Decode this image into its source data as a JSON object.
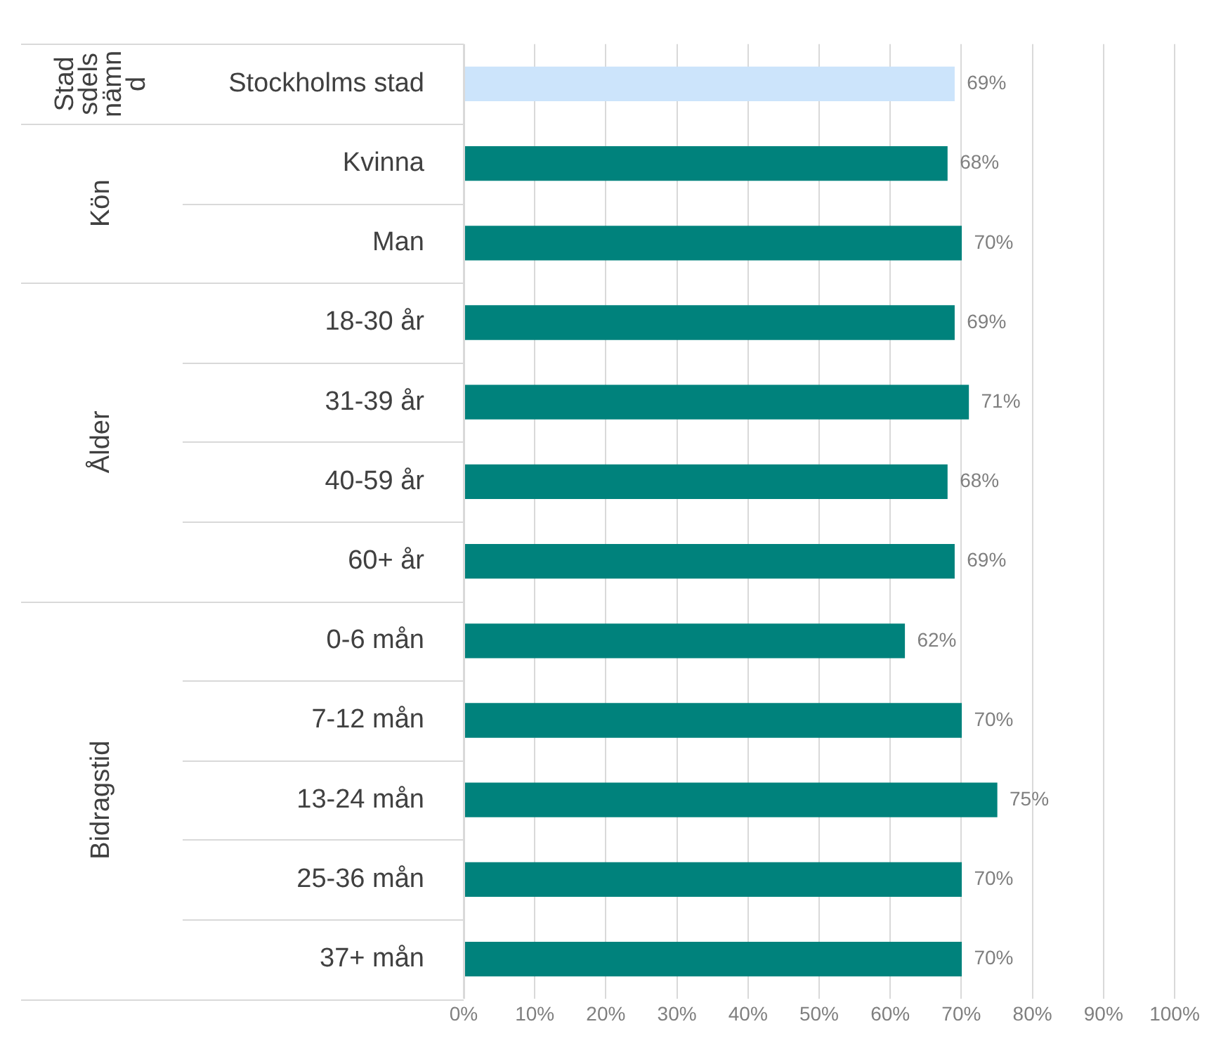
{
  "chart_data": {
    "type": "bar",
    "orientation": "horizontal",
    "categories": [
      "Stockholms stad",
      "Kvinna",
      "Man",
      "18-30 år",
      "31-39 år",
      "40-59 år",
      "60+ år",
      "0-6 mån",
      "7-12 mån",
      "13-24 mån",
      "25-36 mån",
      "37+ mån"
    ],
    "values": [
      69,
      68,
      70,
      69,
      71,
      68,
      69,
      62,
      70,
      75,
      70,
      70
    ],
    "colors": [
      "#cce4fb",
      "#00827c",
      "#00827c",
      "#00827c",
      "#00827c",
      "#00827c",
      "#00827c",
      "#00827c",
      "#00827c",
      "#00827c",
      "#00827c",
      "#00827c"
    ],
    "value_labels": [
      "69%",
      "68%",
      "70%",
      "69%",
      "71%",
      "68%",
      "69%",
      "62%",
      "70%",
      "75%",
      "70%",
      "70%"
    ],
    "xlim": [
      0,
      100
    ],
    "xticks": [
      {
        "value": 0,
        "label": "0%"
      },
      {
        "value": 10,
        "label": "10%"
      },
      {
        "value": 20,
        "label": "20%"
      },
      {
        "value": 30,
        "label": "30%"
      },
      {
        "value": 40,
        "label": "40%"
      },
      {
        "value": 50,
        "label": "50%"
      },
      {
        "value": 60,
        "label": "60%"
      },
      {
        "value": 70,
        "label": "70%"
      },
      {
        "value": 80,
        "label": "80%"
      },
      {
        "value": 90,
        "label": "90%"
      },
      {
        "value": 100,
        "label": "100%"
      }
    ],
    "annotations": [
      "Stad\nsdels\nnämn\nd",
      "Kön",
      "Ålder",
      "Bidragstid"
    ],
    "grid": "x",
    "legend": false
  }
}
